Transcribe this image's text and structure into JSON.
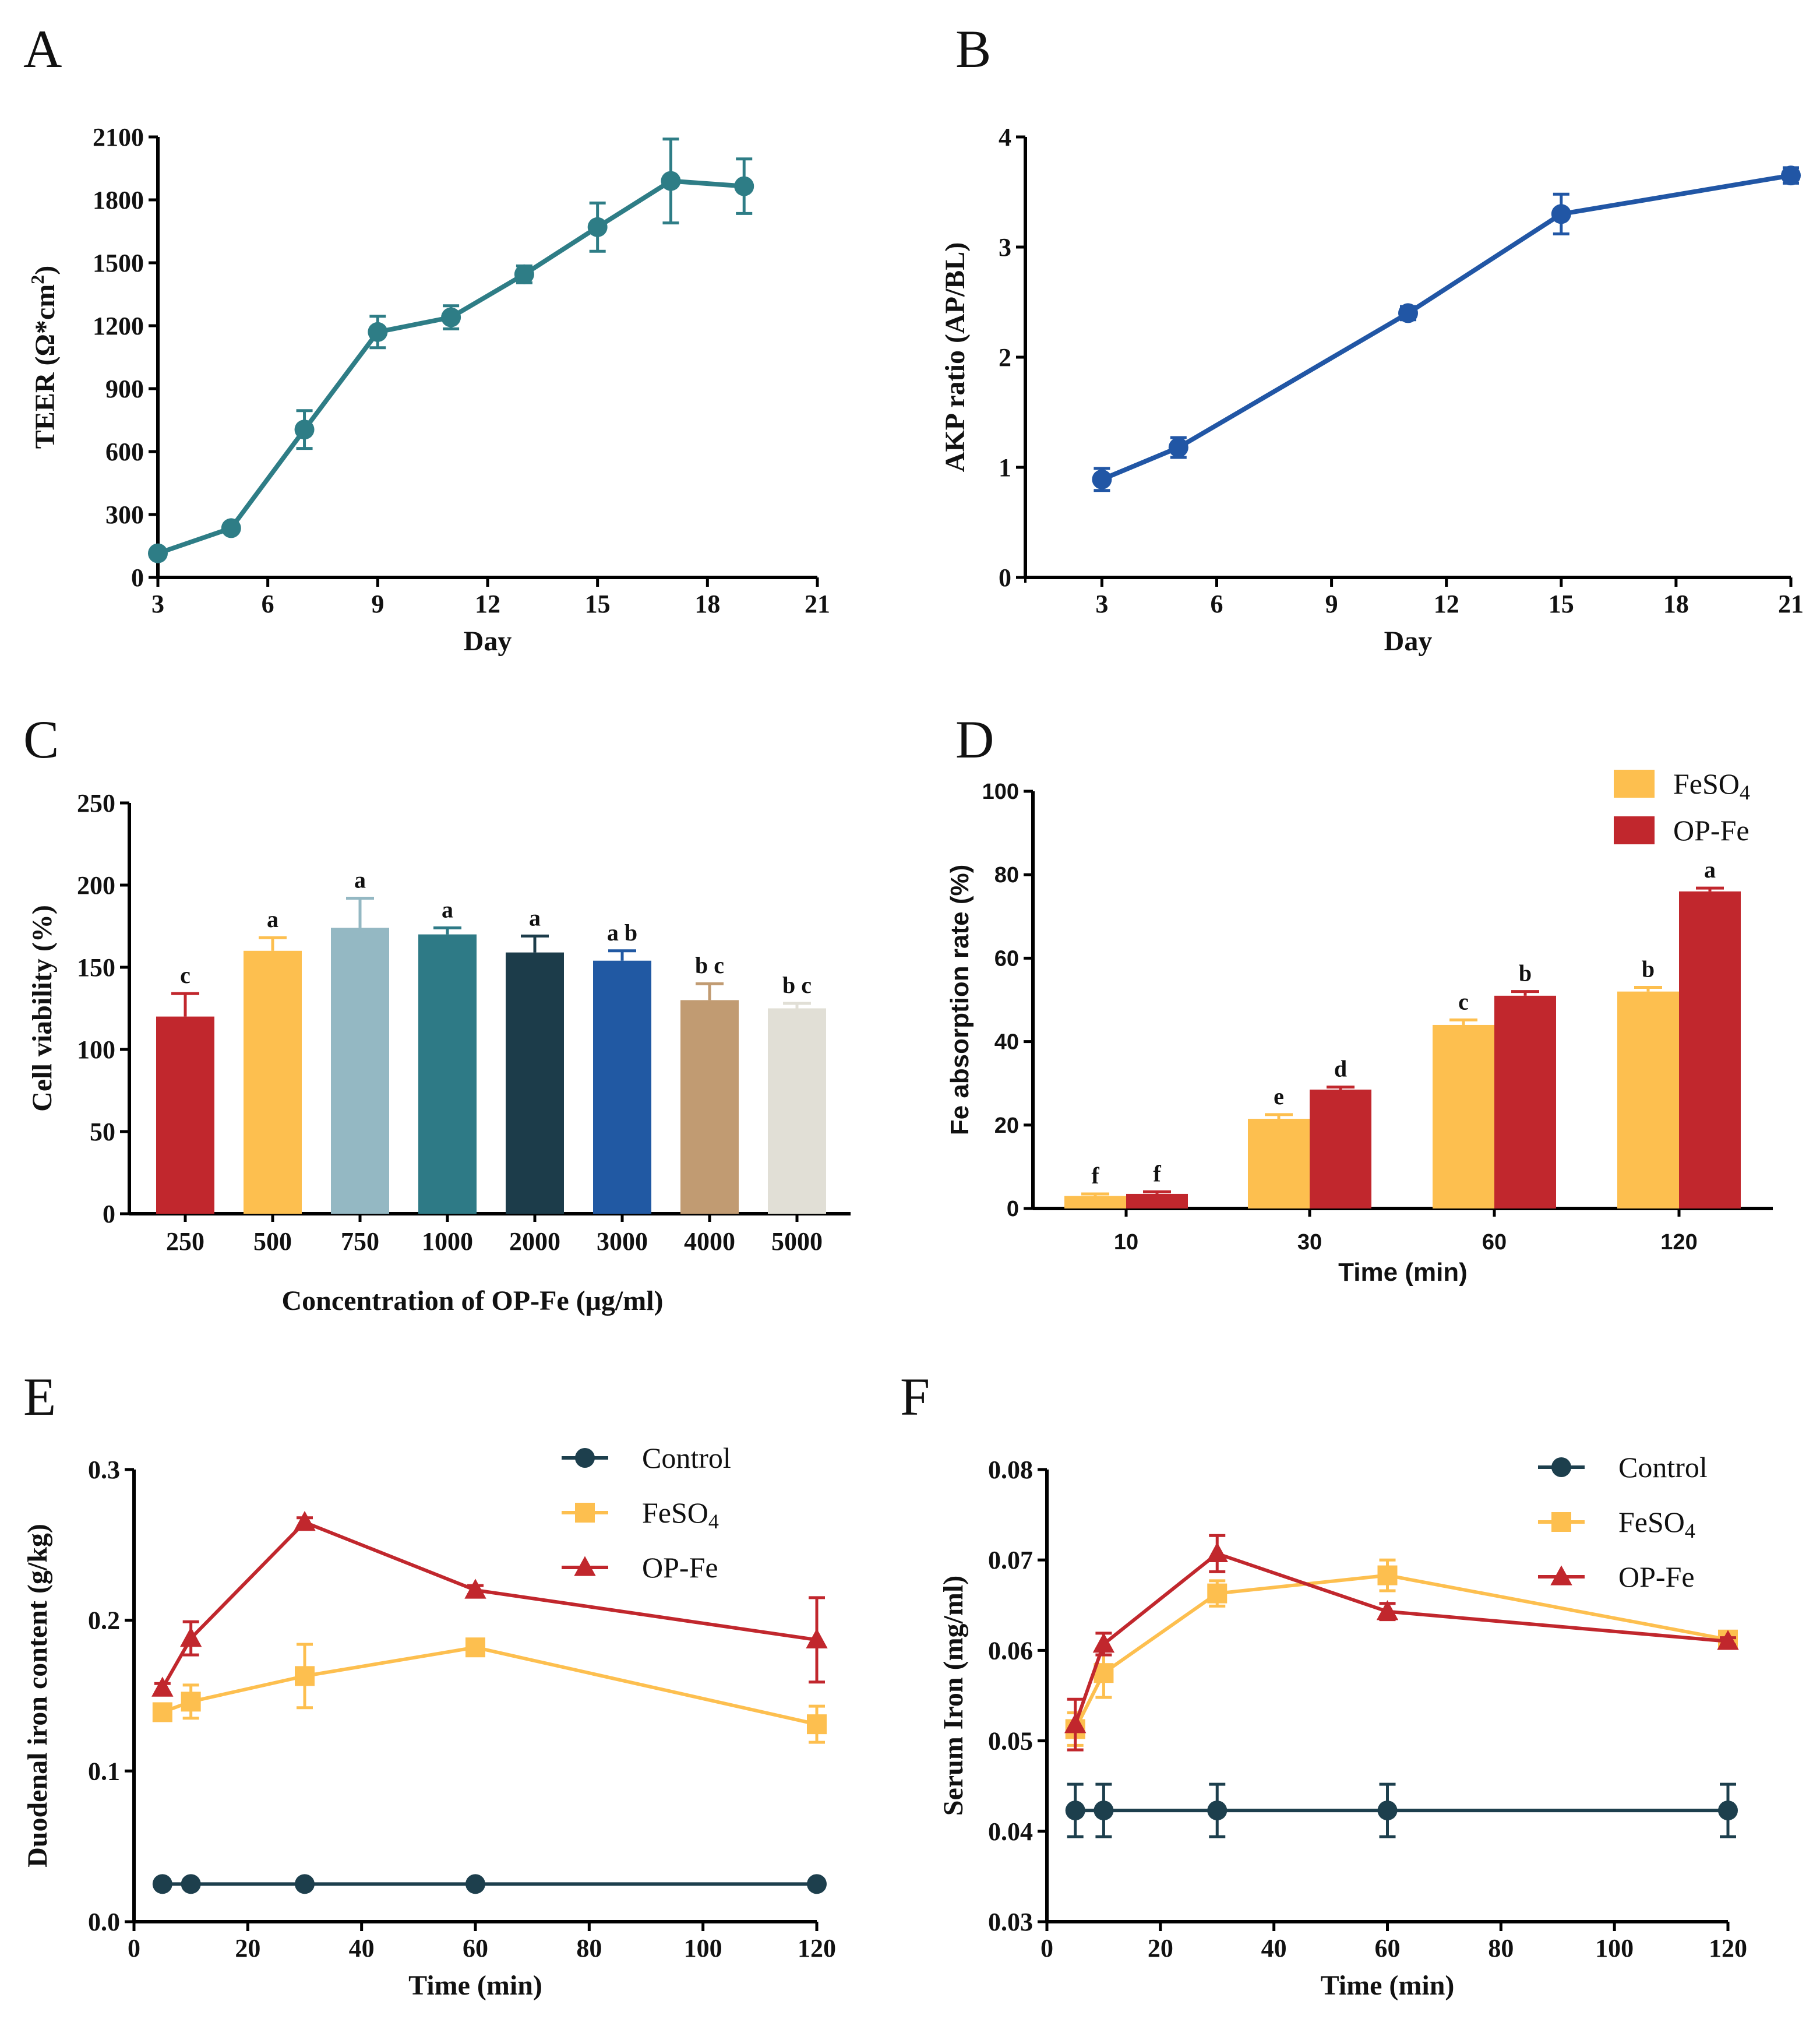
{
  "chart_data": [
    {
      "panel": "A",
      "type": "line",
      "xlabel": "Day",
      "ylabel": "TEER (Ω*cm",
      "ylabel_sup": "2",
      "ylabel_close": ")",
      "xlim": [
        3,
        21
      ],
      "ylim": [
        0,
        2100
      ],
      "xticks": [
        3,
        6,
        9,
        12,
        15,
        18,
        21
      ],
      "yticks": [
        0,
        300,
        600,
        900,
        1200,
        1500,
        1800,
        2100
      ],
      "color": "#2e7d86",
      "series": [
        {
          "name": "TEER",
          "x": [
            3,
            5,
            7,
            9,
            11,
            13,
            15,
            17,
            19
          ],
          "y": [
            115,
            235,
            705,
            1170,
            1240,
            1445,
            1670,
            1890,
            1865
          ],
          "err": [
            20,
            20,
            90,
            75,
            55,
            40,
            115,
            200,
            130
          ]
        }
      ]
    },
    {
      "panel": "B",
      "type": "line",
      "xlabel": "Day",
      "ylabel": "AKP ratio (AP/BL)",
      "xlim": [
        1,
        21
      ],
      "ylim": [
        0,
        4
      ],
      "xticks": [
        3,
        6,
        9,
        12,
        15,
        18,
        21
      ],
      "yticks": [
        0,
        1,
        2,
        3,
        4
      ],
      "color": "#2156a5",
      "series": [
        {
          "name": "AKP ratio",
          "x": [
            3,
            5,
            11,
            15,
            21
          ],
          "y": [
            0.89,
            1.18,
            2.4,
            3.3,
            3.65
          ],
          "err": [
            0.1,
            0.09,
            0.06,
            0.18,
            0.07
          ]
        }
      ]
    },
    {
      "panel": "C",
      "type": "bar",
      "xlabel": "Concentration of OP-Fe (μg/ml)",
      "ylabel": "Cell viability (%)",
      "ylim": [
        0,
        250
      ],
      "yticks": [
        0,
        50,
        100,
        150,
        200,
        250
      ],
      "categories": [
        "250",
        "500",
        "750",
        "1000",
        "2000",
        "3000",
        "4000",
        "5000"
      ],
      "values": [
        120,
        160,
        174,
        170,
        159,
        154,
        130,
        125
      ],
      "err": [
        14,
        8,
        18,
        4,
        10,
        6,
        10,
        3
      ],
      "letters": [
        "c",
        "a",
        "a",
        "a",
        "a",
        "a b",
        "b c",
        "b c"
      ],
      "colors": [
        "#c1272d",
        "#fdbf4f",
        "#94b8c3",
        "#2e7a86",
        "#1c3c4a",
        "#2159a3",
        "#c19b72",
        "#e1dfd6"
      ]
    },
    {
      "panel": "D",
      "type": "bar",
      "xlabel": "Time (min)",
      "ylabel": "Fe absorption rate (%)",
      "ylim": [
        0,
        100
      ],
      "yticks": [
        0,
        20,
        40,
        60,
        80,
        100
      ],
      "categories": [
        "10",
        "30",
        "60",
        "120"
      ],
      "legend_position": "top-right",
      "series": [
        {
          "name": "FeSO",
          "sub": "4",
          "color": "#fdbf4f",
          "values": [
            3.0,
            21.5,
            44.0,
            52.0
          ],
          "err": [
            0.5,
            1.0,
            1.2,
            1.0
          ],
          "letters": [
            "f",
            "e",
            "c",
            "b"
          ]
        },
        {
          "name": "OP-Fe",
          "color": "#c1272d",
          "values": [
            3.5,
            28.5,
            51.0,
            76.0
          ],
          "err": [
            0.5,
            0.6,
            1.0,
            0.8
          ],
          "letters": [
            "f",
            "d",
            "b",
            "a"
          ]
        }
      ]
    },
    {
      "panel": "E",
      "type": "line",
      "xlabel": "Time (min)",
      "ylabel": "Duodenal iron content (g/kg)",
      "xlim": [
        0,
        120
      ],
      "ylim": [
        0.0,
        0.3
      ],
      "xticks": [
        0,
        20,
        40,
        60,
        80,
        100,
        120
      ],
      "yticks": [
        "0.0",
        "0.1",
        "0.2",
        "0.3"
      ],
      "legend_position": "top-right",
      "series": [
        {
          "name": "Control",
          "marker": "circle",
          "color": "#1d3f4d",
          "x": [
            5,
            10,
            30,
            60,
            120
          ],
          "y": [
            0.025,
            0.025,
            0.025,
            0.025,
            0.025
          ],
          "err": [
            0,
            0,
            0,
            0,
            0
          ]
        },
        {
          "name": "FeSO",
          "sub": "4",
          "marker": "square",
          "color": "#fdbf4f",
          "x": [
            5,
            10,
            30,
            60,
            120
          ],
          "y": [
            0.139,
            0.146,
            0.163,
            0.182,
            0.131
          ],
          "err": [
            0.004,
            0.011,
            0.021,
            0.004,
            0.012
          ]
        },
        {
          "name": "OP-Fe",
          "marker": "triangle",
          "color": "#c1272d",
          "x": [
            5,
            10,
            30,
            60,
            120
          ],
          "y": [
            0.155,
            0.188,
            0.265,
            0.22,
            0.187
          ],
          "err": [
            0.003,
            0.011,
            0.003,
            0.003,
            0.028
          ]
        }
      ]
    },
    {
      "panel": "F",
      "type": "line",
      "xlabel": "Time (min)",
      "ylabel": "Serum Iron (mg/ml)",
      "xlim": [
        0,
        120
      ],
      "ylim": [
        0.03,
        0.08
      ],
      "xticks": [
        0,
        20,
        40,
        60,
        80,
        100,
        120
      ],
      "yticks": [
        "0.03",
        "0.04",
        "0.05",
        "0.06",
        "0.07",
        "0.08"
      ],
      "legend_position": "top-right",
      "series": [
        {
          "name": "Control",
          "marker": "circle",
          "color": "#1d3f4d",
          "x": [
            5,
            10,
            30,
            60,
            120
          ],
          "y": [
            0.0423,
            0.0423,
            0.0423,
            0.0423,
            0.0423
          ],
          "err": [
            0.0029,
            0.0029,
            0.0029,
            0.0029,
            0.0029
          ]
        },
        {
          "name": "FeSO",
          "sub": "4",
          "marker": "square",
          "color": "#fdbf4f",
          "x": [
            5,
            10,
            30,
            60,
            120
          ],
          "y": [
            0.0513,
            0.0575,
            0.0663,
            0.0683,
            0.0612
          ],
          "err": [
            0.0018,
            0.0027,
            0.0014,
            0.0017,
            0.0003
          ]
        },
        {
          "name": "OP-Fe",
          "marker": "triangle",
          "color": "#c1272d",
          "x": [
            5,
            10,
            30,
            60,
            120
          ],
          "y": [
            0.0518,
            0.0607,
            0.0707,
            0.0643,
            0.061
          ],
          "err": [
            0.0028,
            0.0012,
            0.002,
            0.0009,
            0.0004
          ]
        }
      ]
    }
  ]
}
